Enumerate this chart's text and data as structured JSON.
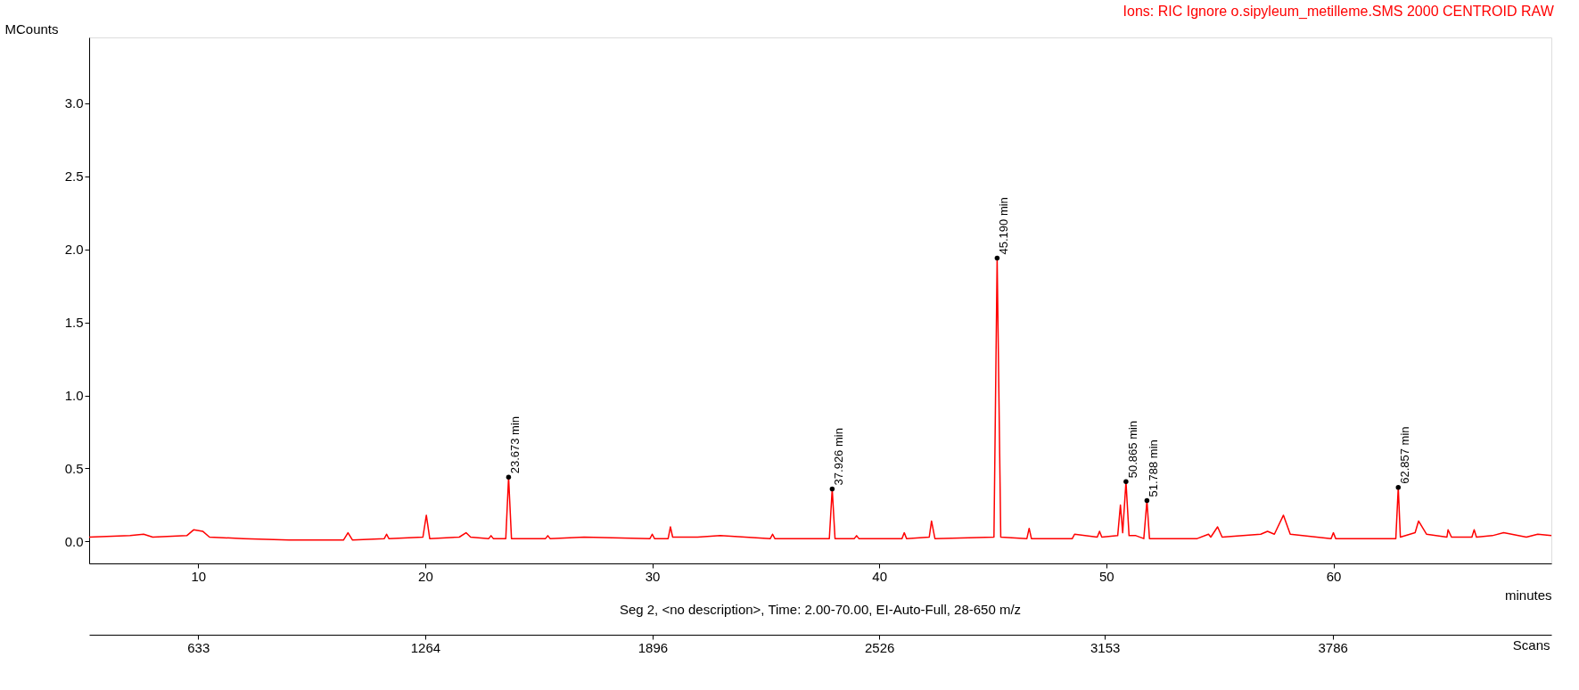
{
  "chart_data": {
    "type": "line",
    "title": "Ions: RIC Ignore o.sipyleum_metilleme.SMS 2000 CENTROID RAW",
    "xlabel": "minutes",
    "ylabel": "MCounts",
    "x2label": "Scans",
    "xlim": [
      5.2,
      69.6
    ],
    "xticks": [
      10,
      20,
      30,
      40,
      50,
      60
    ],
    "ylim": [
      -0.15,
      3.45
    ],
    "yticks": [
      {
        "value": 0,
        "label": "0.0"
      },
      0.5,
      {
        "value": 1,
        "label": "1.0"
      },
      1.5,
      {
        "value": 2,
        "label": "2.0"
      },
      2.5,
      {
        "value": 3,
        "label": "3.0"
      }
    ],
    "x2lim": [
      330,
      4394
    ],
    "x2ticks": [
      633,
      1264,
      1896,
      2526,
      3153,
      3786
    ],
    "grid": false,
    "marker": "none",
    "line_style": "solid",
    "series": [
      {
        "color": "#ff0000",
        "x": [
          5.2,
          7,
          7.6,
          8,
          9.5,
          9.8,
          10.2,
          10.5,
          12,
          14,
          16.4,
          16.6,
          16.8,
          18.2,
          18.3,
          18.4,
          19.9,
          20.05,
          20.2,
          21.5,
          21.8,
          22.0,
          22.8,
          22.9,
          23.0,
          23.55,
          23.673,
          23.8,
          25.3,
          25.4,
          25.5,
          27,
          29.9,
          30.0,
          30.1,
          30.7,
          30.8,
          30.9,
          32,
          33,
          35.2,
          35.3,
          35.4,
          37.8,
          37.926,
          38.05,
          38.9,
          39.0,
          39.1,
          41.0,
          41.1,
          41.2,
          42.2,
          42.3,
          42.45,
          45.05,
          45.19,
          45.35,
          46.5,
          46.6,
          46.7,
          48.5,
          48.6,
          49.6,
          49.7,
          49.8,
          50.5,
          50.62,
          50.72,
          50.865,
          51.0,
          51.3,
          51.65,
          51.788,
          51.9,
          54.0,
          54.5,
          54.6,
          54.9,
          55.1,
          56.8,
          57.1,
          57.4,
          57.8,
          58.1,
          59.9,
          60.0,
          60.1,
          62.75,
          62.857,
          62.95,
          63.6,
          63.75,
          64.1,
          65.0,
          65.05,
          65.2,
          66.1,
          66.2,
          66.3,
          67.0,
          67.5,
          68.5,
          69.0,
          69.6
        ],
        "values": [
          0.03,
          0.04,
          0.05,
          0.03,
          0.04,
          0.08,
          0.07,
          0.03,
          0.02,
          0.01,
          0.01,
          0.06,
          0.01,
          0.02,
          0.05,
          0.02,
          0.03,
          0.18,
          0.02,
          0.03,
          0.06,
          0.03,
          0.02,
          0.04,
          0.02,
          0.02,
          0.44,
          0.02,
          0.02,
          0.04,
          0.02,
          0.03,
          0.02,
          0.05,
          0.02,
          0.02,
          0.1,
          0.03,
          0.03,
          0.04,
          0.02,
          0.05,
          0.02,
          0.02,
          0.36,
          0.02,
          0.02,
          0.04,
          0.02,
          0.02,
          0.06,
          0.02,
          0.03,
          0.14,
          0.02,
          0.03,
          1.94,
          0.03,
          0.02,
          0.09,
          0.02,
          0.02,
          0.05,
          0.03,
          0.07,
          0.03,
          0.04,
          0.25,
          0.06,
          0.41,
          0.04,
          0.04,
          0.02,
          0.28,
          0.02,
          0.02,
          0.05,
          0.03,
          0.1,
          0.03,
          0.05,
          0.07,
          0.05,
          0.18,
          0.05,
          0.02,
          0.06,
          0.02,
          0.02,
          0.37,
          0.03,
          0.06,
          0.14,
          0.05,
          0.03,
          0.08,
          0.03,
          0.03,
          0.08,
          0.03,
          0.04,
          0.06,
          0.03,
          0.05,
          0.04
        ]
      }
    ],
    "annotations": [
      {
        "text": "23.673 min",
        "x": 23.673,
        "y": 0.44
      },
      {
        "text": "37.926 min",
        "x": 37.926,
        "y": 0.36
      },
      {
        "text": "45.190 min",
        "x": 45.19,
        "y": 1.94
      },
      {
        "text": "50.865 min",
        "x": 50.865,
        "y": 0.41
      },
      {
        "text": "51.788 min",
        "x": 51.788,
        "y": 0.28
      },
      {
        "text": "62.857 min",
        "x": 62.857,
        "y": 0.37
      },
      "Seg 2, <no description>, Time:  2.00-70.00, EI-Auto-Full, 28-650 m/z"
    ]
  }
}
